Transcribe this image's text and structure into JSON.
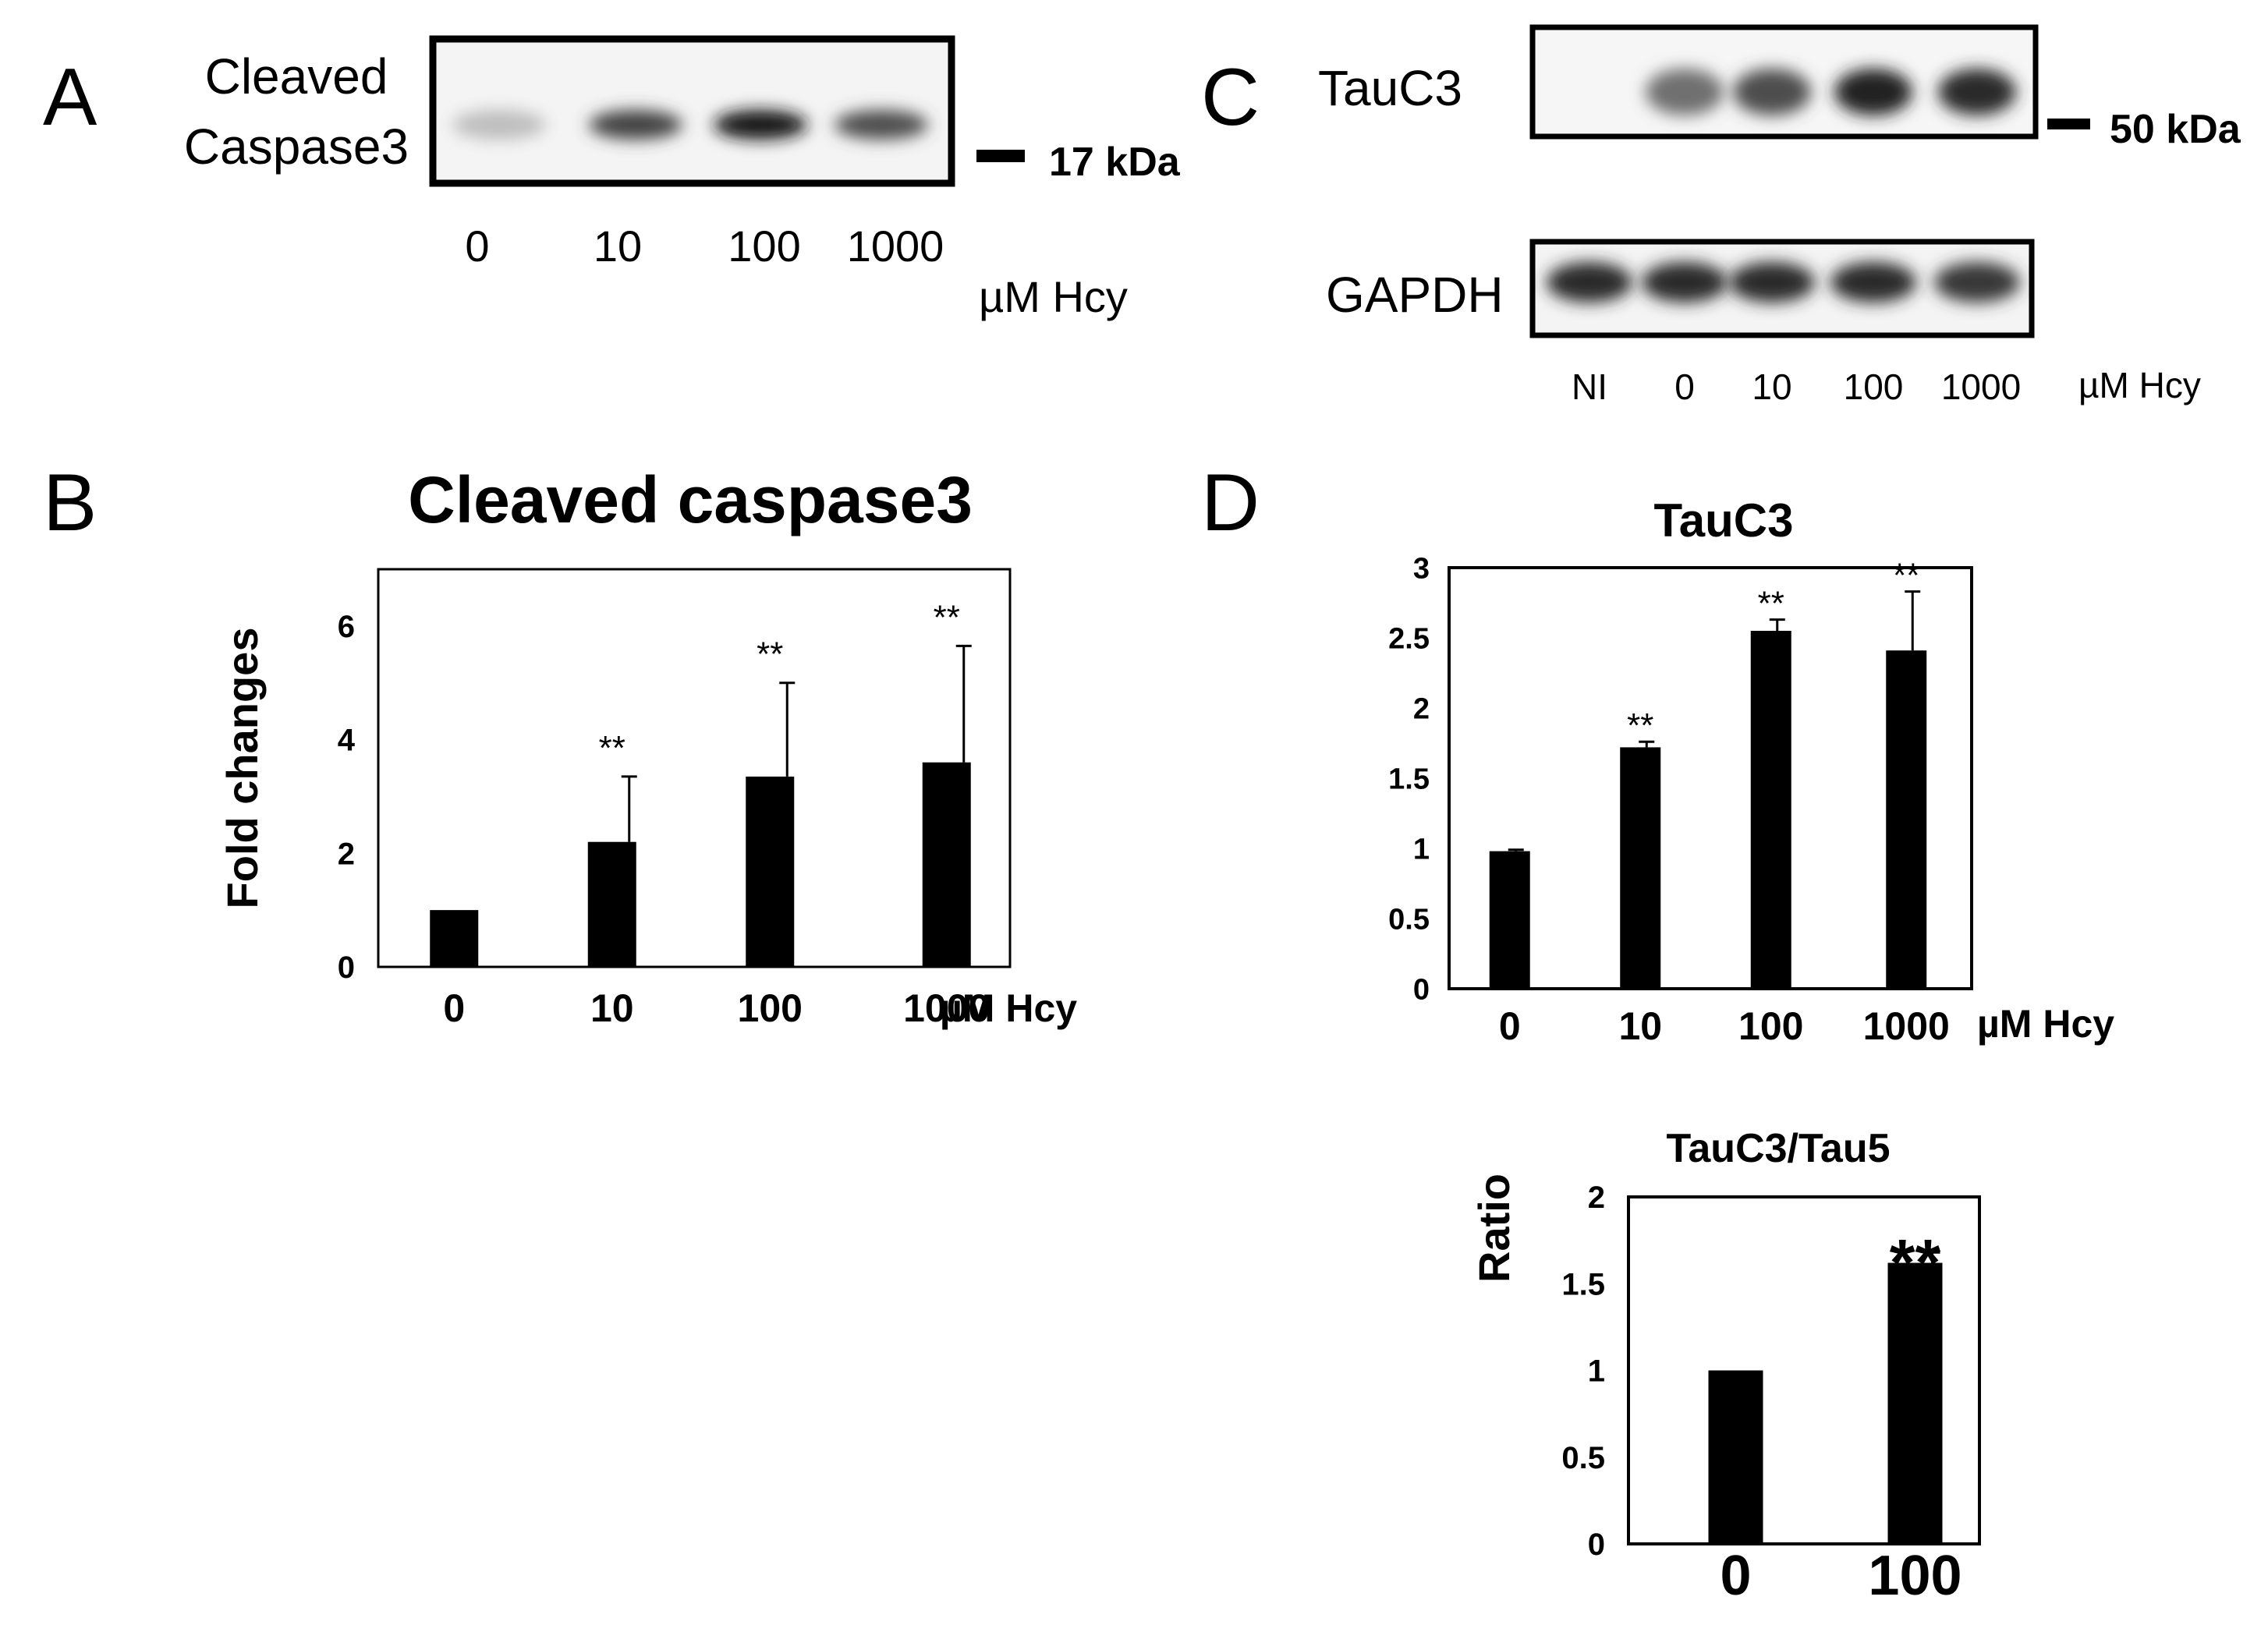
{
  "panels": {
    "a": {
      "letter": "A",
      "blot_label_line1": "Cleaved",
      "blot_label_line2": "Caspase3",
      "marker": "17 kDa",
      "lanes": [
        "0",
        "10",
        "100",
        "1000"
      ],
      "unit": "µM Hcy",
      "band_intensity": [
        0.2,
        0.75,
        0.95,
        0.7
      ]
    },
    "c": {
      "letter": "C",
      "blot1_label": "TauC3",
      "blot2_label": "GAPDH",
      "marker": "50 kDa",
      "lanes": [
        "NI",
        "0",
        "10",
        "100",
        "1000"
      ],
      "unit": "µM Hcy",
      "tauc3_band_intensity": [
        0.0,
        0.55,
        0.7,
        0.9,
        0.85
      ],
      "gapdh_band_intensity": [
        0.85,
        0.85,
        0.85,
        0.85,
        0.8
      ]
    },
    "b": {
      "letter": "B"
    },
    "d": {
      "letter": "D"
    }
  },
  "chart_data": [
    {
      "id": "b",
      "type": "bar",
      "title": "Cleaved caspase3",
      "xlabel": "",
      "ylabel": "Fold changes",
      "categories": [
        "0",
        "10",
        "100",
        "1000"
      ],
      "values": [
        1.0,
        2.2,
        3.35,
        3.6
      ],
      "errors": [
        0,
        1.15,
        1.65,
        2.05
      ],
      "significance": [
        "",
        "**",
        "**",
        "**"
      ],
      "ylim": [
        0,
        7
      ],
      "yticks": [
        "0",
        "2",
        "4",
        "6"
      ],
      "unit_label": "µM Hcy",
      "grid": false
    },
    {
      "id": "d1",
      "type": "bar",
      "title": "TauC3",
      "xlabel": "",
      "ylabel": "",
      "categories": [
        "0",
        "10",
        "100",
        "1000"
      ],
      "values": [
        0.98,
        1.72,
        2.55,
        2.41
      ],
      "errors": [
        0.01,
        0.04,
        0.08,
        0.42
      ],
      "significance": [
        "",
        "**",
        "**",
        "**"
      ],
      "ylim": [
        0,
        3
      ],
      "yticks": [
        "0",
        "0.5",
        "1",
        "1.5",
        "2",
        "2.5",
        "3"
      ],
      "unit_label": "µM Hcy",
      "grid": false
    },
    {
      "id": "d2",
      "type": "bar",
      "title": "TauC3/Tau5",
      "xlabel": "",
      "ylabel": "Ratio",
      "categories": [
        "0",
        "100"
      ],
      "values": [
        1.0,
        1.62
      ],
      "errors": [
        0,
        0.06
      ],
      "significance": [
        "",
        "**"
      ],
      "ylim": [
        0,
        2
      ],
      "yticks": [
        "0",
        "0.5",
        "1",
        "1.5",
        "2"
      ],
      "unit_label": "",
      "grid": false
    }
  ]
}
